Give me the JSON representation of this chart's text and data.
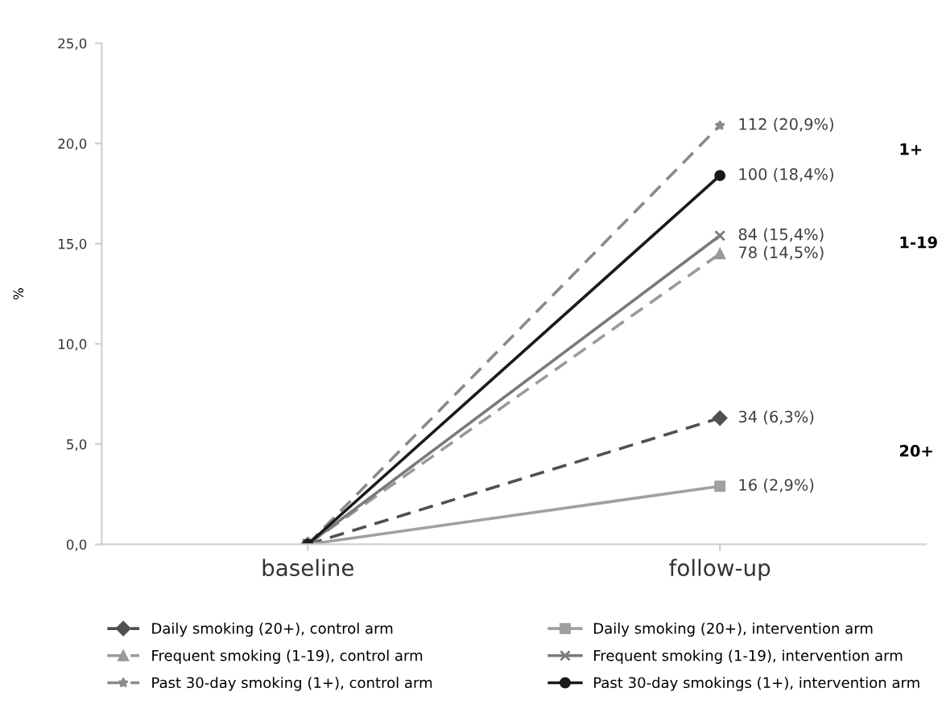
{
  "chart_data": {
    "type": "line",
    "ylabel": "%",
    "categories": [
      "baseline",
      "follow-up"
    ],
    "ylim": [
      0,
      25
    ],
    "yticks": [
      {
        "value": 0,
        "label": "0,0"
      },
      {
        "value": 5,
        "label": "5,0"
      },
      {
        "value": 10,
        "label": "10,0"
      },
      {
        "value": 15,
        "label": "15,0"
      },
      {
        "value": 20,
        "label": "20,0"
      },
      {
        "value": 25,
        "label": "25,0"
      }
    ],
    "grid": false,
    "legend": "bottom",
    "series": [
      {
        "name": "Daily smoking (20+), control arm",
        "color": "#505050",
        "marker": "diamond",
        "line_style": "dashed",
        "values": [
          0,
          6.3
        ],
        "value_labels": [
          null,
          "34 (6,3%)"
        ]
      },
      {
        "name": "Daily smoking (20+), intervention arm",
        "color": "#a0a0a0",
        "marker": "square",
        "line_style": "solid",
        "values": [
          0,
          2.9
        ],
        "value_labels": [
          null,
          "16 (2,9%)"
        ]
      },
      {
        "name": "Frequent smoking (1-19), control arm",
        "color": "#9a9a9a",
        "marker": "triangle",
        "line_style": "dashed",
        "values": [
          0,
          14.5
        ],
        "value_labels": [
          null,
          "78 (14,5%)"
        ]
      },
      {
        "name": "Frequent smoking (1-19), intervention arm",
        "color": "#7a7a7a",
        "marker": "cross",
        "line_style": "solid",
        "values": [
          0,
          15.4
        ],
        "value_labels": [
          null,
          "84 (15,4%)"
        ]
      },
      {
        "name": "Past 30-day smoking (1+), control arm",
        "color": "#8a8a8a",
        "marker": "star",
        "line_style": "dashed",
        "values": [
          0,
          20.9
        ],
        "value_labels": [
          null,
          "112 (20,9%)"
        ]
      },
      {
        "name": "Past 30-day smokings (1+), intervention arm",
        "color": "#1a1a1a",
        "marker": "circle",
        "line_style": "solid",
        "values": [
          0,
          18.4
        ],
        "value_labels": [
          null,
          "100 (18,4%)"
        ]
      }
    ],
    "annotations": [
      "1+",
      "1-19",
      "20+"
    ]
  }
}
